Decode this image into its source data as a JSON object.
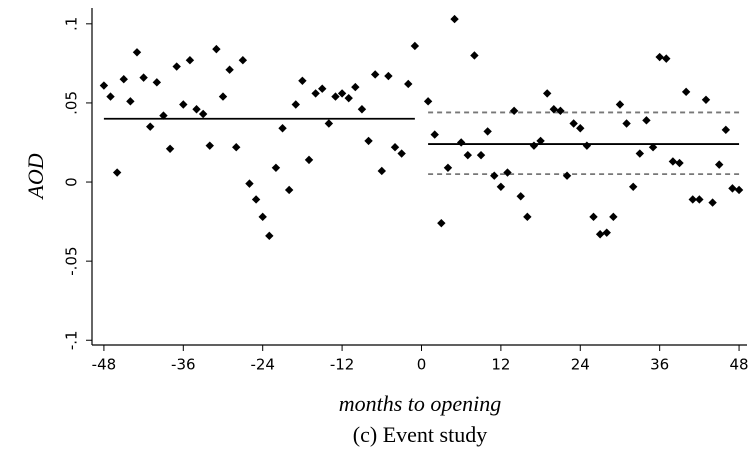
{
  "chart_data": {
    "type": "scatter",
    "caption": "(c) Event study",
    "x_label": "months to opening",
    "y_label": "AOD",
    "xlim": [
      -49.8,
      49.2
    ],
    "ylim": [
      -0.103,
      0.11
    ],
    "xticks": [
      -48,
      -36,
      -24,
      -12,
      0,
      12,
      24,
      36,
      48
    ],
    "yticks": [
      {
        "value": -0.1,
        "label": "-.1"
      },
      {
        "value": -0.05,
        "label": "-.05"
      },
      0,
      {
        "value": 0.05,
        "label": ".05"
      },
      {
        "value": 0.1,
        "label": ".1"
      }
    ],
    "color": "#000000",
    "series": [
      {
        "x": [
          -48,
          -47,
          -46,
          -45,
          -44,
          -43,
          -42,
          -41,
          -40,
          -39,
          -38,
          -37,
          -36,
          -35,
          -34,
          -33,
          -32,
          -31,
          -30,
          -29,
          -28,
          -27,
          -26,
          -25,
          -24,
          -23,
          -22,
          -21,
          -20,
          -19,
          -18,
          -17,
          -16,
          -15,
          -14,
          -13,
          -12,
          -11,
          -10,
          -9,
          -8,
          -7,
          -6,
          -5,
          -4,
          -3,
          -2,
          -1
        ],
        "values": [
          0.061,
          0.054,
          0.006,
          0.065,
          0.051,
          0.082,
          0.066,
          0.035,
          0.063,
          0.042,
          0.021,
          0.073,
          0.049,
          0.077,
          0.046,
          0.043,
          0.023,
          0.084,
          0.054,
          0.071,
          0.022,
          0.077,
          -0.001,
          -0.011,
          -0.022,
          -0.034,
          0.009,
          0.034,
          -0.005,
          0.049,
          0.064,
          0.014,
          0.056,
          0.059,
          0.037,
          0.054,
          0.056,
          0.053,
          0.06,
          0.046,
          0.026,
          0.068,
          0.007,
          0.067,
          0.022,
          0.018,
          0.062,
          0.086
        ]
      },
      {
        "x": [
          1,
          2,
          3,
          4,
          5,
          6,
          7,
          8,
          9,
          10,
          11,
          12,
          13,
          14,
          15,
          16,
          17,
          18,
          19,
          20,
          21,
          22,
          23,
          24,
          25,
          26,
          27,
          28,
          29,
          30,
          31,
          32,
          33,
          34,
          35,
          36,
          37,
          38,
          39,
          40,
          41,
          42,
          43,
          44,
          45,
          46,
          47,
          48
        ],
        "values": [
          0.051,
          0.03,
          -0.026,
          0.009,
          0.103,
          0.025,
          0.017,
          0.08,
          0.017,
          0.032,
          0.004,
          -0.003,
          0.006,
          0.045,
          -0.009,
          -0.022,
          0.023,
          0.026,
          0.056,
          0.046,
          0.045,
          0.004,
          0.037,
          0.034,
          0.023,
          -0.022,
          -0.033,
          -0.032,
          -0.022,
          0.049,
          0.037,
          -0.003,
          0.018,
          0.039,
          0.022,
          0.079,
          0.078,
          0.013,
          0.012,
          0.057,
          -0.011,
          -0.011,
          0.052,
          -0.013,
          0.011,
          0.033,
          -0.004,
          -0.005
        ]
      }
    ],
    "lines": [
      {
        "x": [
          -48,
          -1
        ],
        "y": 0.04,
        "style": "solid"
      },
      {
        "x": [
          1,
          48
        ],
        "y": 0.024,
        "style": "solid"
      },
      {
        "x": [
          1,
          48
        ],
        "y": 0.044,
        "style": "dashed"
      },
      {
        "x": [
          1,
          48
        ],
        "y": 0.005,
        "style": "dashed"
      }
    ]
  }
}
